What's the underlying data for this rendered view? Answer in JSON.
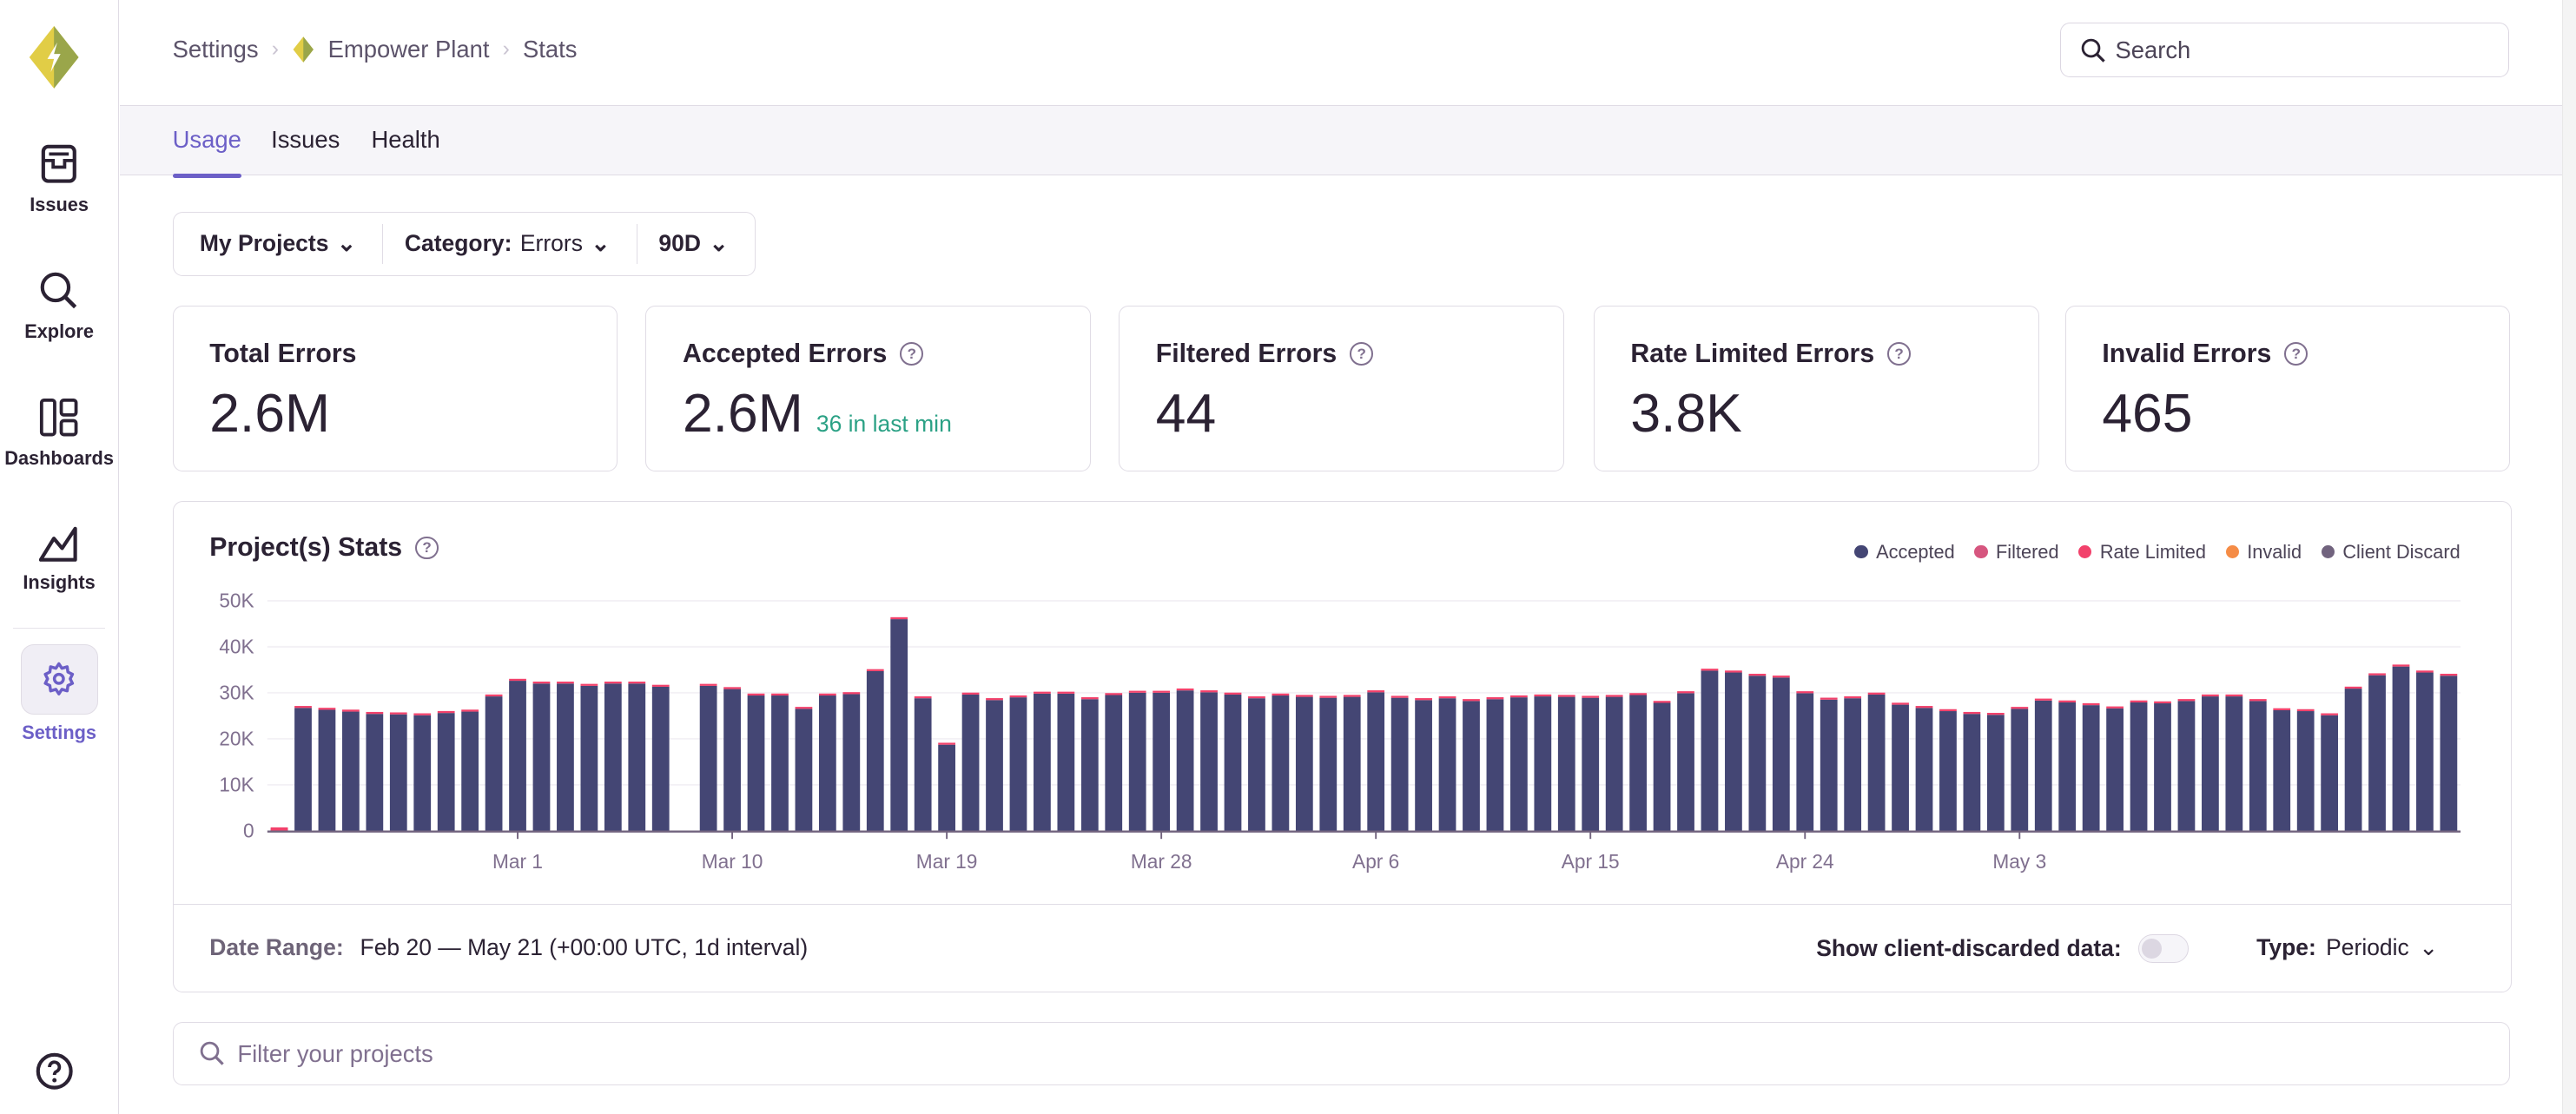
{
  "colors": {
    "accent": "#6c5fc7",
    "accepted": "#444674",
    "filtered": "#d6567f",
    "rate_limited": "#f2416b",
    "invalid": "#f58c46",
    "client_discard": "#71637e",
    "positive": "#2ba185"
  },
  "sidebar": {
    "items": [
      {
        "label": "Issues",
        "icon": "inbox-icon"
      },
      {
        "label": "Explore",
        "icon": "search-icon"
      },
      {
        "label": "Dashboards",
        "icon": "dashboard-icon"
      },
      {
        "label": "Insights",
        "icon": "graph-icon"
      },
      {
        "label": "Settings",
        "icon": "gear-icon",
        "active": true
      }
    ],
    "help_icon": "question-icon"
  },
  "breadcrumb": [
    "Settings",
    "Empower Plant",
    "Stats"
  ],
  "search": {
    "placeholder": "Search"
  },
  "tabs": [
    {
      "label": "Usage",
      "active": true
    },
    {
      "label": "Issues"
    },
    {
      "label": "Health"
    }
  ],
  "filters": {
    "projects": "My Projects",
    "category_label": "Category:",
    "category_value": "Errors",
    "period": "90D"
  },
  "cards": [
    {
      "title": "Total Errors",
      "value": "2.6M"
    },
    {
      "title": "Accepted Errors",
      "value": "2.6M",
      "sub": "36 in last min"
    },
    {
      "title": "Filtered Errors",
      "value": "44"
    },
    {
      "title": "Rate Limited Errors",
      "value": "3.8K"
    },
    {
      "title": "Invalid Errors",
      "value": "465"
    }
  ],
  "chart": {
    "title": "Project(s) Stats",
    "footer": {
      "date_range_label": "Date Range:",
      "date_range_value": "Feb 20 — May 21 (+00:00 UTC, 1d interval)",
      "client_discard_label": "Show client-discarded data:",
      "client_discard_on": false,
      "type_label": "Type:",
      "type_value": "Periodic"
    }
  },
  "chart_data": {
    "type": "bar",
    "stacked": true,
    "x_start": "Feb 20",
    "x_end": "May 21",
    "interval": "1d",
    "x_ticks": [
      "Mar 1",
      "Mar 10",
      "Mar 19",
      "Mar 28",
      "Apr 6",
      "Apr 15",
      "Apr 24",
      "May 3"
    ],
    "y_ticks": [
      "0",
      "10K",
      "20K",
      "30K",
      "40K",
      "50K"
    ],
    "ylim": [
      0,
      50000
    ],
    "grid": true,
    "legend": {
      "placement": "top-right",
      "entries": [
        "Accepted",
        "Filtered",
        "Rate Limited",
        "Invalid",
        "Client Discard"
      ]
    },
    "series": [
      {
        "name": "Accepted",
        "values": [
          300,
          26700,
          26300,
          25900,
          25400,
          25300,
          25100,
          25600,
          25900,
          29200,
          32600,
          32000,
          32000,
          31500,
          32000,
          32000,
          31300,
          0,
          31500,
          30800,
          29400,
          29400,
          26500,
          29400,
          29700,
          34700,
          46000,
          28800,
          18700,
          29600,
          28400,
          29000,
          29800,
          29800,
          28600,
          29500,
          30000,
          30000,
          30500,
          30100,
          29600,
          28800,
          29400,
          29100,
          28900,
          29100,
          30100,
          28900,
          28400,
          28800,
          28200,
          28600,
          29000,
          29200,
          29100,
          28900,
          29100,
          29500,
          27800,
          29900,
          34800,
          34400,
          33700,
          33300,
          29900,
          28500,
          28800,
          29600,
          27400,
          26700,
          26000,
          25400,
          25200,
          26500,
          28300,
          27900,
          27300,
          26600,
          27900,
          27700,
          28200,
          29200,
          29200,
          28200,
          26200,
          26000,
          25100,
          30900,
          33800,
          35700,
          34400,
          33700
        ]
      }
    ]
  }
}
